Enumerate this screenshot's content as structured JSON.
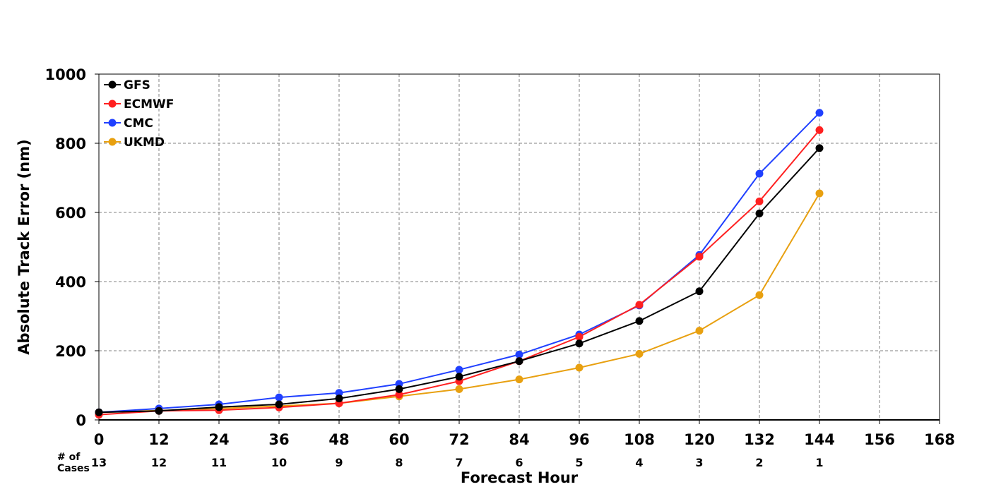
{
  "chart_data": {
    "type": "line",
    "title": "",
    "xlabel": "Forecast Hour",
    "ylabel": "Absolute Track Error (nm)",
    "xlim": [
      0,
      168
    ],
    "ylim": [
      0,
      1000
    ],
    "x_ticks": [
      0,
      12,
      24,
      36,
      48,
      60,
      72,
      84,
      96,
      108,
      120,
      132,
      144,
      156,
      168
    ],
    "y_ticks": [
      0,
      200,
      400,
      600,
      800,
      1000
    ],
    "grid": true,
    "legend_position": "top-left",
    "cases_label": [
      "# of",
      "Cases"
    ],
    "case_counts": [
      {
        "x": 0,
        "count": "13"
      },
      {
        "x": 12,
        "count": "12"
      },
      {
        "x": 24,
        "count": "11"
      },
      {
        "x": 36,
        "count": "10"
      },
      {
        "x": 48,
        "count": "9"
      },
      {
        "x": 60,
        "count": "8"
      },
      {
        "x": 72,
        "count": "7"
      },
      {
        "x": 84,
        "count": "6"
      },
      {
        "x": 96,
        "count": "5"
      },
      {
        "x": 108,
        "count": "4"
      },
      {
        "x": 120,
        "count": "3"
      },
      {
        "x": 132,
        "count": "2"
      },
      {
        "x": 144,
        "count": "1"
      }
    ],
    "x": [
      0,
      12,
      24,
      36,
      48,
      60,
      72,
      84,
      96,
      108,
      120,
      132,
      144
    ],
    "series": [
      {
        "name": "GFS",
        "color": "#000000",
        "values": [
          22,
          26,
          37,
          45,
          62,
          89,
          125,
          170,
          221,
          286,
          372,
          597,
          786
        ]
      },
      {
        "name": "ECMWF",
        "color": "#ff2020",
        "values": [
          15,
          26,
          28,
          36,
          48,
          73,
          112,
          170,
          240,
          333,
          472,
          632,
          838
        ]
      },
      {
        "name": "CMC",
        "color": "#2040ff",
        "values": [
          22,
          33,
          45,
          65,
          78,
          104,
          145,
          189,
          247,
          331,
          477,
          712,
          888
        ]
      },
      {
        "name": "UKMD",
        "color": "#e8a010",
        "values": [
          22,
          27,
          33,
          40,
          48,
          68,
          89,
          117,
          151,
          191,
          258,
          361,
          655
        ]
      }
    ]
  }
}
